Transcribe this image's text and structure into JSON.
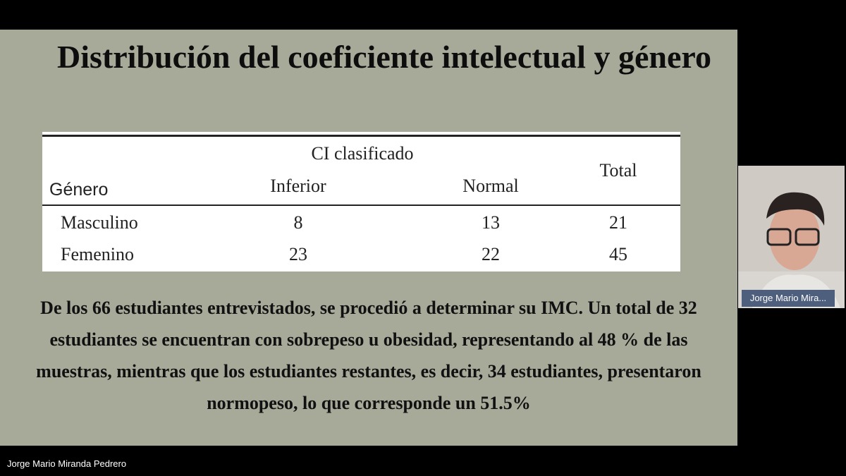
{
  "slide": {
    "title": "Distribución del coeficiente intelectual y género",
    "table": {
      "group_header": "CI clasificado",
      "columns": [
        "Género",
        "Inferior",
        "Normal",
        "Total"
      ],
      "rows": [
        [
          "Masculino",
          "8",
          "13",
          "21"
        ],
        [
          "Femenino",
          "23",
          "22",
          "45"
        ]
      ]
    },
    "paragraph": "De los 66 estudiantes entrevistados, se procedió a determinar su IMC. Un total de 32 estudiantes se encuentran con sobrepeso u obesidad, representando al 48 % de las muestras, mientras que los estudiantes restantes, es decir, 34 estudiantes, presentaron normopeso, lo que corresponde un 51.5%"
  },
  "participant": {
    "label": "Jorge Mario Mira..."
  },
  "presenter": {
    "name": "Jorge Mario Miranda Pedrero"
  }
}
